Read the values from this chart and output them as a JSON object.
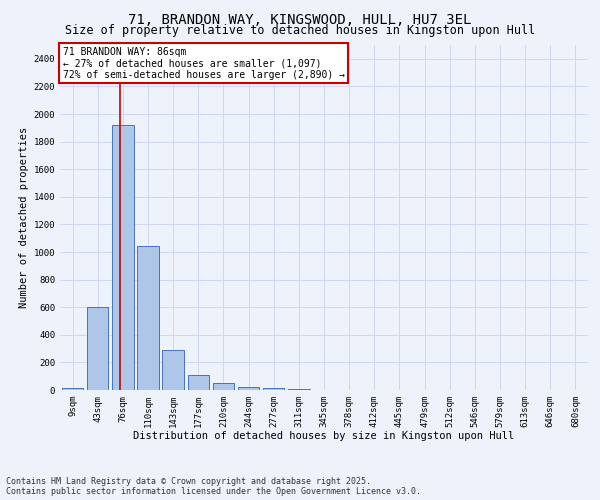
{
  "title": "71, BRANDON WAY, KINGSWOOD, HULL, HU7 3EL",
  "subtitle": "Size of property relative to detached houses in Kingston upon Hull",
  "xlabel": "Distribution of detached houses by size in Kingston upon Hull",
  "ylabel": "Number of detached properties",
  "bin_labels": [
    "9sqm",
    "43sqm",
    "76sqm",
    "110sqm",
    "143sqm",
    "177sqm",
    "210sqm",
    "244sqm",
    "277sqm",
    "311sqm",
    "345sqm",
    "378sqm",
    "412sqm",
    "445sqm",
    "479sqm",
    "512sqm",
    "546sqm",
    "579sqm",
    "613sqm",
    "646sqm",
    "680sqm"
  ],
  "bar_values": [
    15,
    600,
    1920,
    1040,
    290,
    110,
    48,
    20,
    15,
    5,
    3,
    2,
    2,
    2,
    1,
    1,
    1,
    1,
    0,
    0,
    0
  ],
  "bar_color": "#aec6e8",
  "bar_edge_color": "#4472c4",
  "grid_color": "#d0d8f0",
  "background_color": "#eef2fb",
  "annotation_box_text": "71 BRANDON WAY: 86sqm\n← 27% of detached houses are smaller (1,097)\n72% of semi-detached houses are larger (2,890) →",
  "annotation_box_color": "#ffffff",
  "annotation_box_edge_color": "#cc0000",
  "red_line_x": 1.87,
  "ylim": [
    0,
    2500
  ],
  "yticks": [
    0,
    200,
    400,
    600,
    800,
    1000,
    1200,
    1400,
    1600,
    1800,
    2000,
    2200,
    2400
  ],
  "footer_line1": "Contains HM Land Registry data © Crown copyright and database right 2025.",
  "footer_line2": "Contains public sector information licensed under the Open Government Licence v3.0.",
  "title_fontsize": 10,
  "subtitle_fontsize": 8.5,
  "axis_label_fontsize": 7.5,
  "tick_fontsize": 6.5,
  "annotation_fontsize": 7,
  "footer_fontsize": 6
}
